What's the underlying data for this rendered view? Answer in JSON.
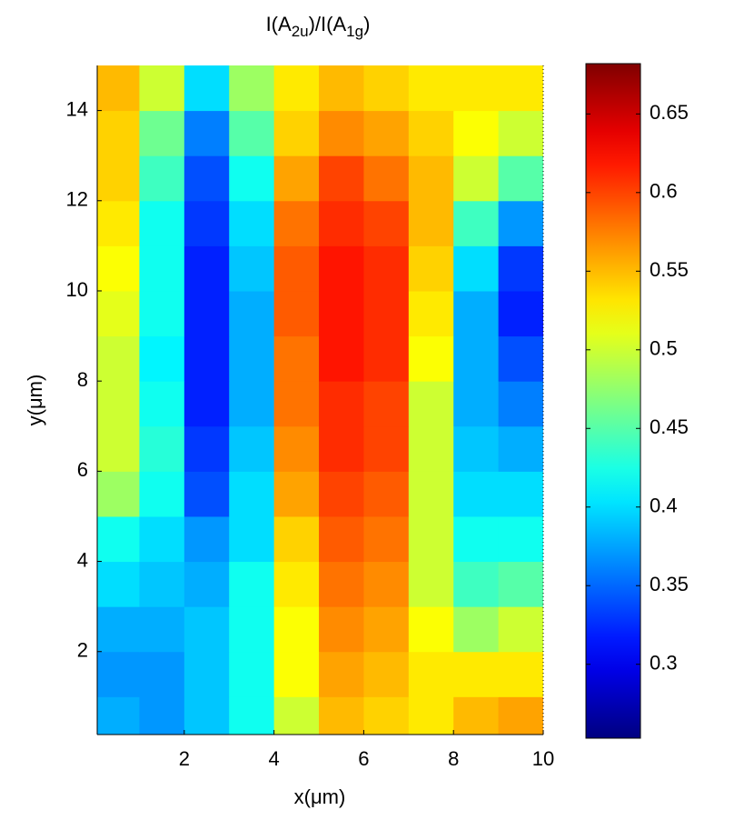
{
  "chart_data": {
    "type": "heatmap",
    "title": [
      "I(A",
      "2u",
      ")/I(A",
      "1g",
      ")"
    ],
    "xlabel": "x(μm)",
    "ylabel": "y(μm)",
    "colormap": "jet",
    "x": [
      0.5,
      1.5,
      2.5,
      3.5,
      4.5,
      5.5,
      6.5,
      7.5,
      8.5,
      9.5
    ],
    "y": [
      0.5,
      1.5,
      2.5,
      3.5,
      4.5,
      5.5,
      6.5,
      7.5,
      8.5,
      9.5,
      10.5,
      11.5,
      12.5,
      13.5,
      14.5
    ],
    "values": [
      [
        0.38,
        0.37,
        0.39,
        0.42,
        0.5,
        0.55,
        0.54,
        0.53,
        0.55,
        0.56
      ],
      [
        0.37,
        0.37,
        0.39,
        0.42,
        0.52,
        0.56,
        0.55,
        0.53,
        0.53,
        0.53
      ],
      [
        0.38,
        0.38,
        0.39,
        0.42,
        0.52,
        0.57,
        0.56,
        0.52,
        0.48,
        0.5
      ],
      [
        0.4,
        0.39,
        0.38,
        0.42,
        0.53,
        0.58,
        0.57,
        0.5,
        0.44,
        0.45
      ],
      [
        0.42,
        0.4,
        0.37,
        0.4,
        0.54,
        0.59,
        0.58,
        0.5,
        0.42,
        0.42
      ],
      [
        0.48,
        0.42,
        0.34,
        0.4,
        0.56,
        0.6,
        0.59,
        0.5,
        0.4,
        0.4
      ],
      [
        0.5,
        0.43,
        0.33,
        0.39,
        0.57,
        0.61,
        0.6,
        0.5,
        0.39,
        0.38
      ],
      [
        0.5,
        0.42,
        0.32,
        0.38,
        0.58,
        0.61,
        0.6,
        0.5,
        0.38,
        0.36
      ],
      [
        0.5,
        0.41,
        0.32,
        0.38,
        0.58,
        0.62,
        0.61,
        0.52,
        0.38,
        0.34
      ],
      [
        0.51,
        0.42,
        0.32,
        0.38,
        0.59,
        0.62,
        0.61,
        0.53,
        0.38,
        0.32
      ],
      [
        0.52,
        0.42,
        0.32,
        0.39,
        0.59,
        0.62,
        0.61,
        0.54,
        0.4,
        0.33
      ],
      [
        0.53,
        0.42,
        0.33,
        0.4,
        0.58,
        0.61,
        0.6,
        0.55,
        0.44,
        0.37
      ],
      [
        0.54,
        0.44,
        0.34,
        0.42,
        0.56,
        0.6,
        0.58,
        0.55,
        0.5,
        0.45
      ],
      [
        0.54,
        0.46,
        0.36,
        0.45,
        0.54,
        0.57,
        0.56,
        0.54,
        0.52,
        0.5
      ],
      [
        0.55,
        0.5,
        0.4,
        0.48,
        0.53,
        0.55,
        0.54,
        0.53,
        0.53,
        0.53
      ]
    ],
    "xlim": [
      0.06,
      10
    ],
    "ylim": [
      0.16,
      15
    ],
    "xticks": [
      2,
      4,
      6,
      8,
      10
    ],
    "yticks": [
      2,
      4,
      6,
      8,
      10,
      12,
      14
    ],
    "clim": [
      0.253,
      0.682
    ],
    "cticks": [
      0.3,
      0.35,
      0.4,
      0.45,
      0.5,
      0.55,
      0.6,
      0.65
    ]
  }
}
